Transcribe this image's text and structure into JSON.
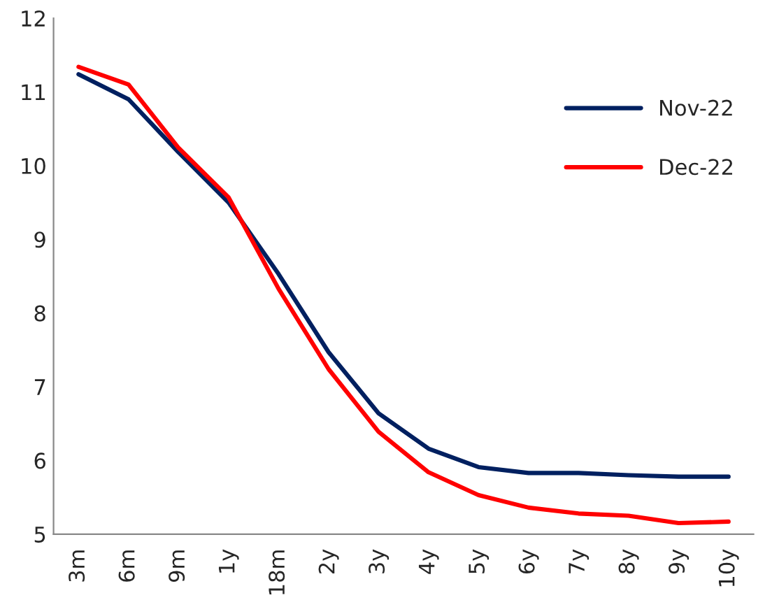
{
  "chart_data": {
    "type": "line",
    "categories": [
      "3m",
      "6m",
      "9m",
      "1y",
      "18m",
      "2y",
      "3y",
      "4y",
      "5y",
      "6y",
      "7y",
      "8y",
      "9y",
      "10y"
    ],
    "series": [
      {
        "name": "Nov-22",
        "color": "#002060",
        "values": [
          11.24,
          10.9,
          10.18,
          9.5,
          8.53,
          7.47,
          6.64,
          6.16,
          5.91,
          5.83,
          5.83,
          5.8,
          5.78,
          5.78
        ]
      },
      {
        "name": "Dec-22",
        "color": "#ff0000",
        "values": [
          11.34,
          11.1,
          10.24,
          9.57,
          8.33,
          7.24,
          6.39,
          5.84,
          5.53,
          5.36,
          5.28,
          5.25,
          5.15,
          5.17
        ]
      }
    ],
    "ylim": [
      5,
      12
    ],
    "yticks": [
      5,
      6,
      7,
      8,
      9,
      10,
      11,
      12
    ],
    "grid": false,
    "legend": "top right",
    "line_style": "solid",
    "marker": "none"
  }
}
